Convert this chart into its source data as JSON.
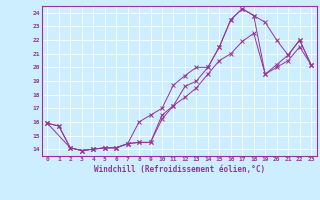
{
  "xlabel": "Windchill (Refroidissement éolien,°C)",
  "bg_color": "#cceeff",
  "grid_color": "#ffffff",
  "line_color": "#993399",
  "xlim": [
    -0.5,
    23.5
  ],
  "ylim": [
    13.5,
    24.5
  ],
  "xticks": [
    0,
    1,
    2,
    3,
    4,
    5,
    6,
    7,
    8,
    9,
    10,
    11,
    12,
    13,
    14,
    15,
    16,
    17,
    18,
    19,
    20,
    21,
    22,
    23
  ],
  "yticks": [
    14,
    15,
    16,
    17,
    18,
    19,
    20,
    21,
    22,
    23,
    24
  ],
  "line1_x": [
    0,
    1,
    2,
    3,
    4,
    5,
    6,
    7,
    8,
    9,
    10,
    11,
    12,
    13,
    14,
    15,
    16,
    17,
    18,
    19,
    20,
    21,
    22,
    23
  ],
  "line1_y": [
    15.9,
    15.7,
    14.1,
    13.9,
    14.0,
    14.1,
    14.1,
    14.4,
    14.5,
    14.5,
    16.5,
    17.2,
    18.6,
    19.0,
    20.0,
    21.5,
    23.5,
    24.3,
    23.8,
    23.3,
    22.0,
    20.9,
    22.0,
    20.2
  ],
  "line2_x": [
    0,
    1,
    2,
    3,
    4,
    5,
    6,
    7,
    8,
    9,
    10,
    11,
    12,
    13,
    14,
    15,
    16,
    17,
    18,
    19,
    20,
    21,
    22,
    23
  ],
  "line2_y": [
    15.9,
    15.7,
    14.1,
    13.9,
    14.0,
    14.1,
    14.1,
    14.4,
    16.0,
    16.5,
    17.0,
    18.7,
    19.4,
    20.0,
    20.0,
    21.5,
    23.5,
    24.3,
    23.8,
    19.5,
    20.2,
    20.9,
    22.0,
    20.2
  ],
  "line3_x": [
    0,
    2,
    3,
    4,
    5,
    6,
    7,
    8,
    9,
    10,
    11,
    12,
    13,
    14,
    15,
    16,
    17,
    18,
    19,
    20,
    21,
    22,
    23
  ],
  "line3_y": [
    15.9,
    14.1,
    13.9,
    14.0,
    14.1,
    14.1,
    14.4,
    14.5,
    14.5,
    16.2,
    17.2,
    17.8,
    18.5,
    19.5,
    20.5,
    21.0,
    21.9,
    22.5,
    19.5,
    20.0,
    20.5,
    21.5,
    20.2
  ]
}
